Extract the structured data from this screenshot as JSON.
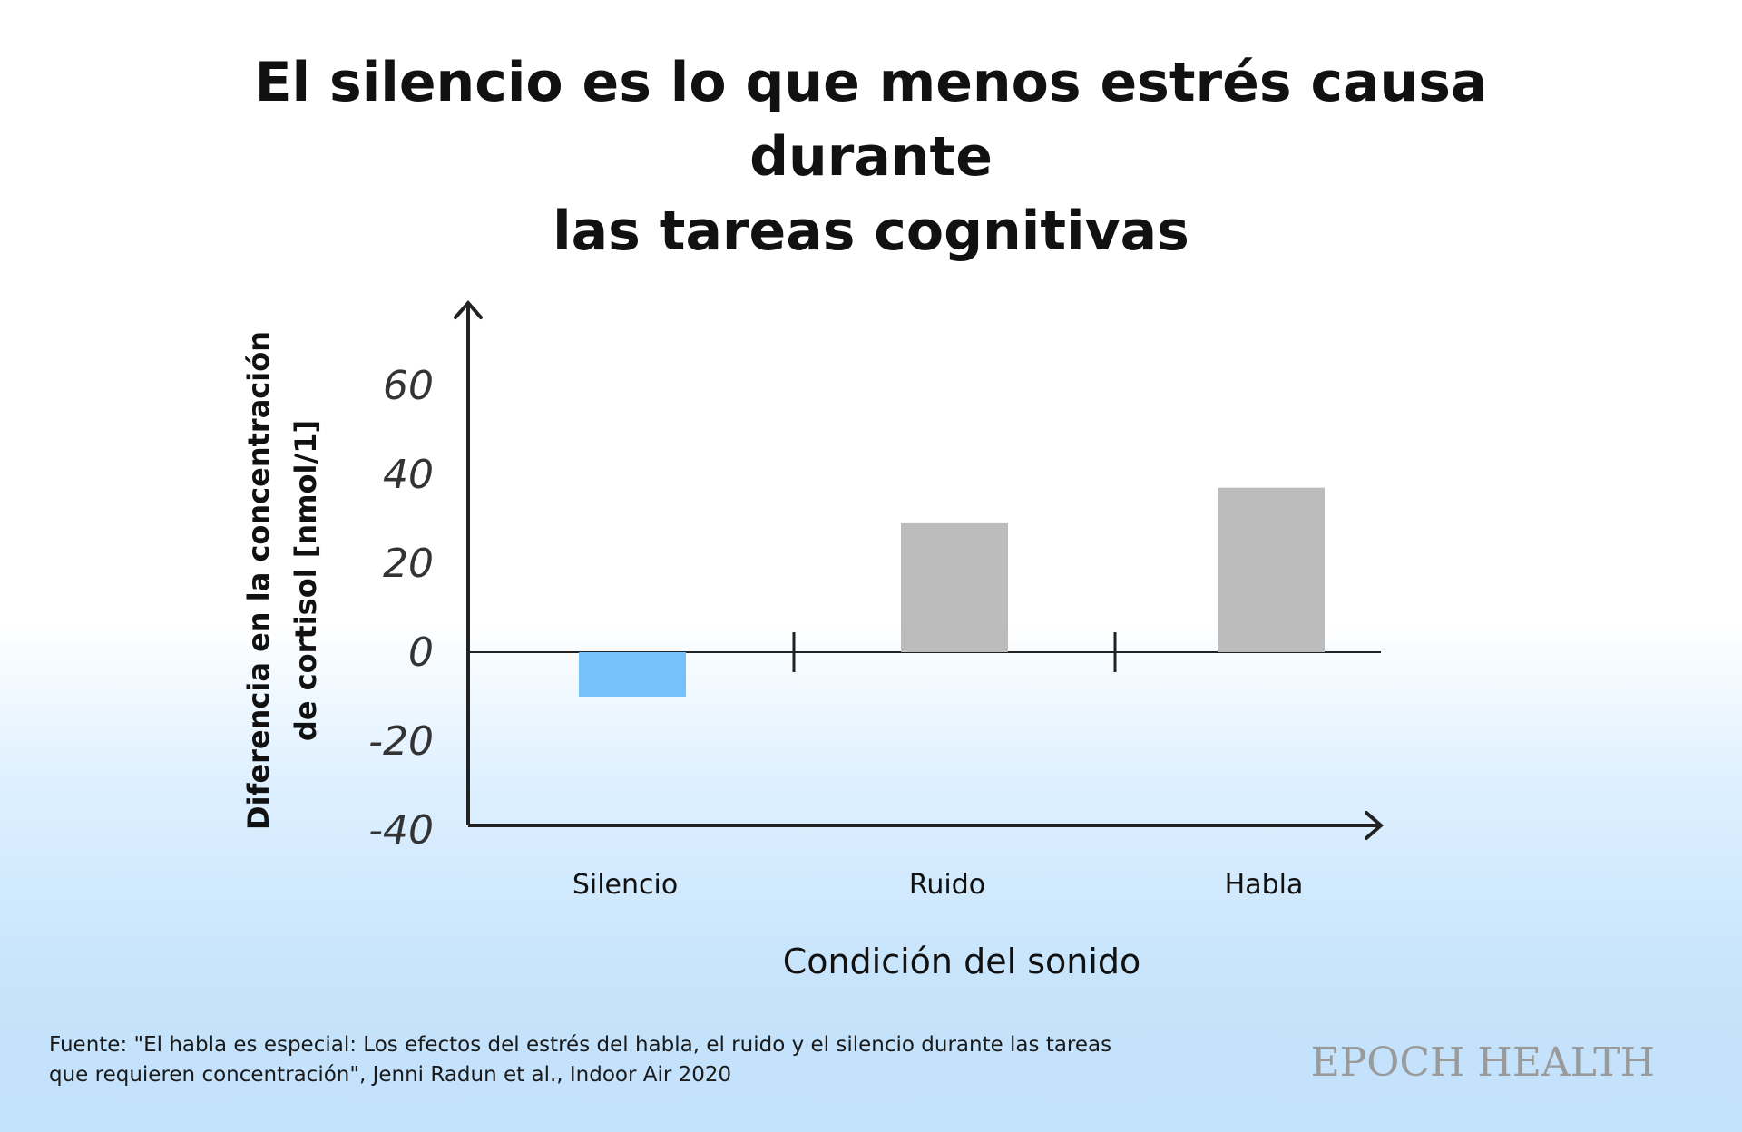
{
  "chart_data": {
    "type": "bar",
    "title": "El silencio es lo que menos estrés causa durante las tareas cognitivas",
    "title_lines": [
      "El silencio es lo que menos estrés causa durante",
      "las tareas cognitivas"
    ],
    "categories": [
      "Silencio",
      "Ruido",
      "Habla"
    ],
    "values": [
      -10,
      29,
      37
    ],
    "bar_colors": [
      "#77c1fb",
      "#bcbcbc",
      "#bcbcbc"
    ],
    "xlabel": "Condición del sonido",
    "ylabel_lines": [
      "Diferencia en la concentración",
      "de cortisol [nmol/1]"
    ],
    "yticks": [
      60,
      40,
      20,
      0,
      -20,
      -40
    ],
    "ytick_labels": [
      "60",
      "40",
      "20",
      "0",
      "-20",
      "-40"
    ],
    "ylim": [
      -40,
      60
    ],
    "grid": false,
    "legend": "none"
  },
  "source": {
    "line1": "Fuente: \"El habla es especial: Los efectos del estrés del habla, el ruido y el silencio durante las tareas",
    "line2": "que requieren concentración\", Jenni Radun et al., Indoor Air 2020"
  },
  "brand": "EPOCH HEALTH"
}
